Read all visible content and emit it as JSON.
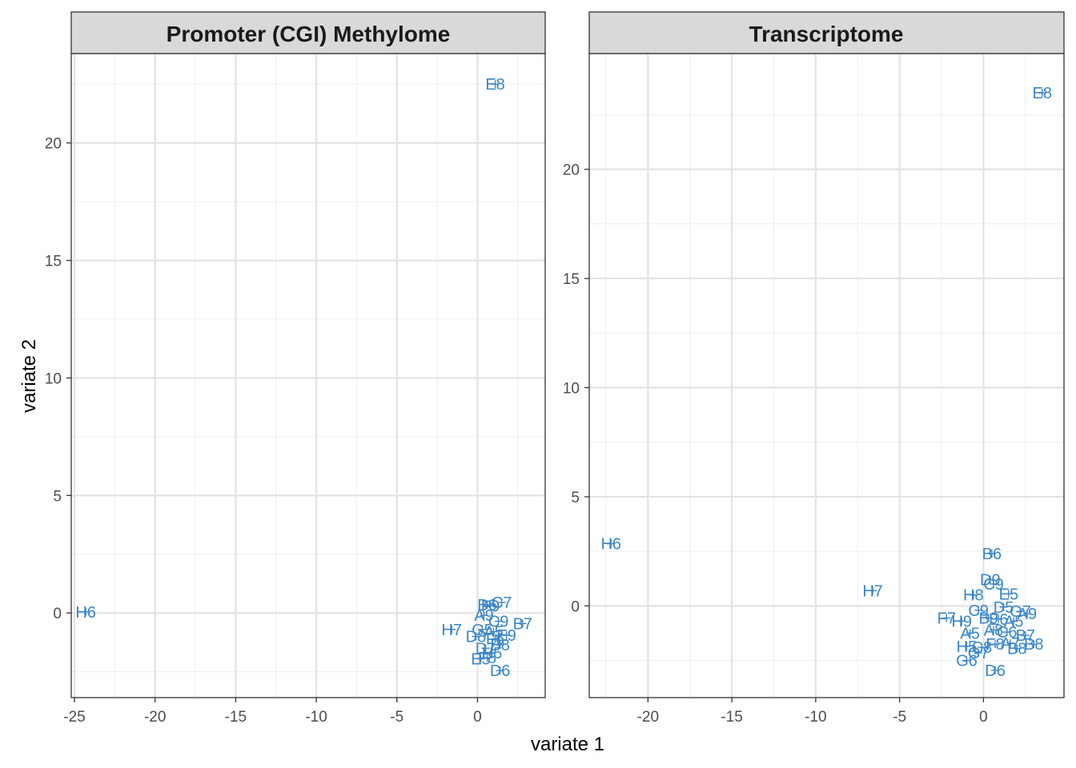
{
  "figure": {
    "xlabel": "variate 1",
    "ylabel": "variate 2",
    "point_color": "#3a86c8"
  },
  "chart_data": [
    {
      "type": "scatter",
      "title": "Promoter (CGI) Methylome",
      "xlim": [
        -25.2,
        4.2
      ],
      "ylim": [
        -3.6,
        23.8
      ],
      "xticks": [
        -25,
        -20,
        -15,
        -10,
        -5,
        0
      ],
      "xtick_labels": [
        "-25",
        "-20",
        "-15",
        "-10",
        "-5",
        "0"
      ],
      "yticks": [
        0,
        5,
        10,
        15,
        20
      ],
      "ytick_labels": [
        "0",
        "5",
        "10",
        "15",
        "20"
      ],
      "grid": true,
      "points": [
        {
          "label": "E8",
          "x": 1.1,
          "y": 22.5
        },
        {
          "label": "H6",
          "x": -24.3,
          "y": 0.05
        },
        {
          "label": "C7",
          "x": 1.5,
          "y": 0.45
        },
        {
          "label": "B6",
          "x": 0.6,
          "y": 0.35
        },
        {
          "label": "F9",
          "x": 0.8,
          "y": 0.3
        },
        {
          "label": "A9",
          "x": 0.4,
          "y": -0.1
        },
        {
          "label": "C9",
          "x": 1.3,
          "y": -0.35
        },
        {
          "label": "B7",
          "x": 2.8,
          "y": -0.45
        },
        {
          "label": "H7",
          "x": -1.6,
          "y": -0.7
        },
        {
          "label": "G5",
          "x": 0.3,
          "y": -0.7
        },
        {
          "label": "A5",
          "x": 1.0,
          "y": -0.8
        },
        {
          "label": "E9",
          "x": 1.8,
          "y": -0.95
        },
        {
          "label": "D8",
          "x": -0.1,
          "y": -1.0
        },
        {
          "label": "F6",
          "x": 1.1,
          "y": -1.1
        },
        {
          "label": "B8",
          "x": 1.4,
          "y": -1.35
        },
        {
          "label": "D7",
          "x": 0.5,
          "y": -1.5
        },
        {
          "label": "H5",
          "x": 0.9,
          "y": -1.7
        },
        {
          "label": "F8",
          "x": 0.6,
          "y": -1.9
        },
        {
          "label": "E5",
          "x": 0.2,
          "y": -1.95
        },
        {
          "label": "D6",
          "x": 1.4,
          "y": -2.45
        }
      ]
    },
    {
      "type": "scatter",
      "title": "Transcriptome",
      "xlim": [
        -23.5,
        4.8
      ],
      "ylim": [
        -4.2,
        25.3
      ],
      "xticks": [
        -20,
        -15,
        -10,
        -5,
        0
      ],
      "xtick_labels": [
        "-20",
        "-15",
        "-10",
        "-5",
        "0"
      ],
      "yticks": [
        0,
        5,
        10,
        15,
        20
      ],
      "ytick_labels": [
        "0",
        "5",
        "10",
        "15",
        "20"
      ],
      "grid": true,
      "points": [
        {
          "label": "E8",
          "x": 3.5,
          "y": 23.5
        },
        {
          "label": "H6",
          "x": -22.2,
          "y": 2.85
        },
        {
          "label": "H7",
          "x": -6.6,
          "y": 0.7
        },
        {
          "label": "B6",
          "x": 0.5,
          "y": 2.4
        },
        {
          "label": "D9",
          "x": 0.4,
          "y": 1.2
        },
        {
          "label": "C9",
          "x": 0.6,
          "y": 1.0
        },
        {
          "label": "H8",
          "x": -0.6,
          "y": 0.5
        },
        {
          "label": "E5",
          "x": 1.5,
          "y": 0.55
        },
        {
          "label": "D5",
          "x": 1.2,
          "y": -0.05
        },
        {
          "label": "G7",
          "x": 2.2,
          "y": -0.25
        },
        {
          "label": "C9",
          "x": -0.3,
          "y": -0.2
        },
        {
          "label": "A9",
          "x": 2.6,
          "y": -0.35
        },
        {
          "label": "F7",
          "x": -2.2,
          "y": -0.55
        },
        {
          "label": "H9",
          "x": -1.3,
          "y": -0.7
        },
        {
          "label": "B9",
          "x": 0.3,
          "y": -0.55
        },
        {
          "label": "E6",
          "x": 0.9,
          "y": -0.6
        },
        {
          "label": "A5",
          "x": 1.8,
          "y": -0.7
        },
        {
          "label": "A5",
          "x": -0.8,
          "y": -1.25
        },
        {
          "label": "A8",
          "x": 0.6,
          "y": -1.1
        },
        {
          "label": "C6",
          "x": 1.4,
          "y": -1.2
        },
        {
          "label": "B7",
          "x": 2.5,
          "y": -1.35
        },
        {
          "label": "F8",
          "x": 0.7,
          "y": -1.75
        },
        {
          "label": "A7",
          "x": 1.6,
          "y": -1.7
        },
        {
          "label": "B8",
          "x": 3.0,
          "y": -1.75
        },
        {
          "label": "H5",
          "x": -1.0,
          "y": -1.85
        },
        {
          "label": "C8",
          "x": -0.1,
          "y": -1.9
        },
        {
          "label": "B8",
          "x": 2.0,
          "y": -1.95
        },
        {
          "label": "G7",
          "x": -0.3,
          "y": -2.15
        },
        {
          "label": "G6",
          "x": -1.0,
          "y": -2.5
        },
        {
          "label": "D6",
          "x": 0.7,
          "y": -2.95
        }
      ]
    }
  ]
}
